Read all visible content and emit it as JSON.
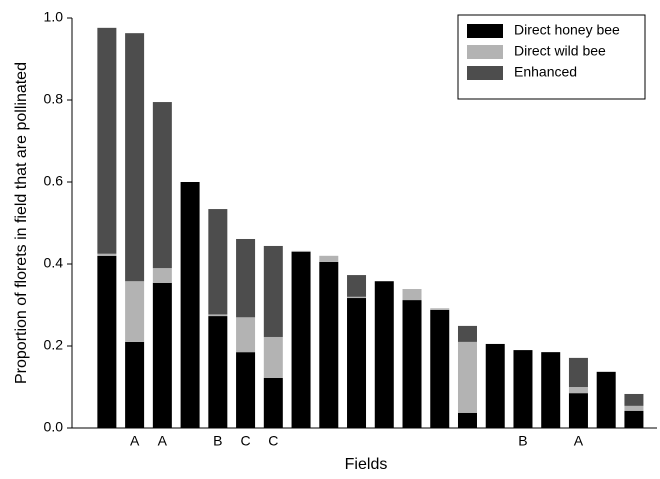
{
  "chart_data": {
    "type": "stacked_bar",
    "x_label": "Fields",
    "y_label": "Proportion of florets in field that are pollinated",
    "categories": [
      null,
      "A",
      "A",
      null,
      "B",
      "C",
      "C",
      null,
      null,
      null,
      null,
      null,
      null,
      null,
      null,
      "B",
      null,
      "A",
      null,
      null
    ],
    "series": [
      {
        "name": "Direct honey bee",
        "color": "#000000",
        "values": [
          0.42,
          0.21,
          0.354,
          0.6,
          0.273,
          0.185,
          0.122,
          0.43,
          0.405,
          0.317,
          0.358,
          0.312,
          0.288,
          0.037,
          0.205,
          0.19,
          0.185,
          0.085,
          0.137,
          0.042
        ]
      },
      {
        "name": "Direct wild bee",
        "color": "#b3b3b3",
        "values": [
          0.005,
          0.148,
          0.036,
          0,
          0.004,
          0.085,
          0.1,
          0.002,
          0.015,
          0.003,
          0,
          0.027,
          0.004,
          0.173,
          0,
          0,
          0,
          0.015,
          0,
          0.012
        ]
      },
      {
        "name": "Enhanced",
        "color": "#4d4d4d",
        "values": [
          0.551,
          0.605,
          0.405,
          0,
          0.257,
          0.191,
          0.222,
          0,
          0,
          0.053,
          0,
          0,
          0,
          0.039,
          0,
          0,
          0,
          0.071,
          0,
          0.029
        ]
      }
    ],
    "ylim": [
      0,
      1.0
    ],
    "yticks": [
      {
        "value": 0,
        "label": "0.0"
      },
      {
        "value": 0.2,
        "label": "0.2"
      },
      {
        "value": 0.4,
        "label": "0.4"
      },
      {
        "value": 0.6,
        "label": "0.6"
      },
      {
        "value": 0.8,
        "label": "0.8"
      },
      {
        "value": 1.0,
        "label": "1.0"
      }
    ],
    "legend": "upper right"
  }
}
